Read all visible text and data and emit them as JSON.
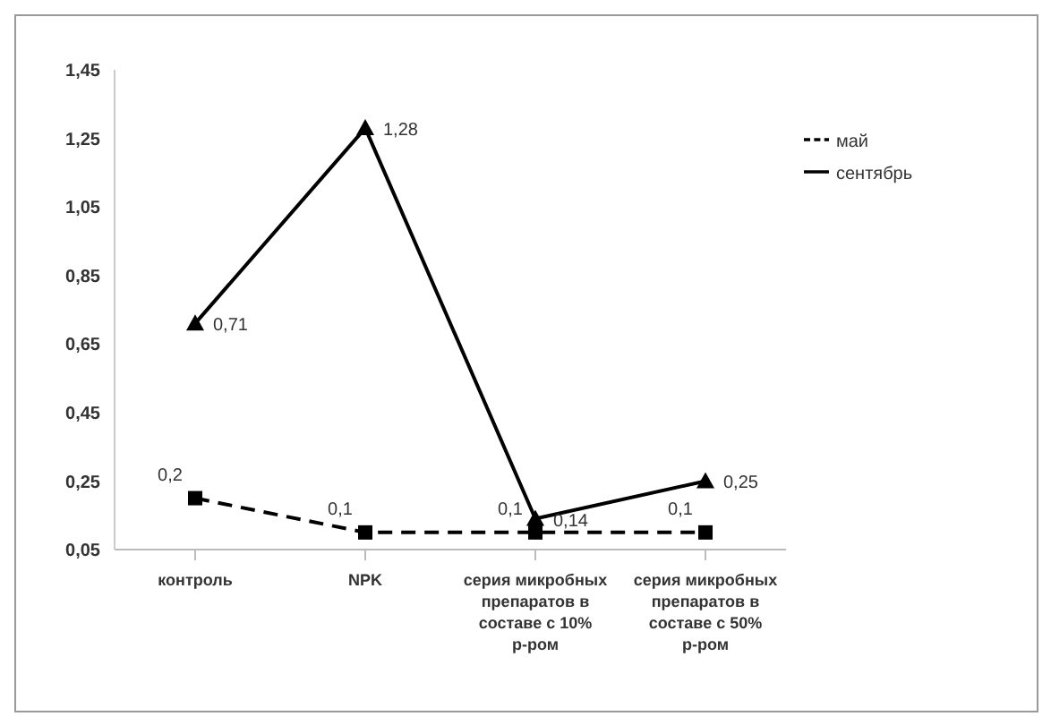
{
  "chart_data": {
    "type": "line",
    "categories": [
      "контроль",
      "NPK",
      "серия микробных препаратов в составе с 10% р-ром",
      "серия микробных препаратов в составе с 50% р-ром"
    ],
    "series": [
      {
        "name": "май",
        "color": "#000000",
        "values": [
          0.2,
          0.1,
          0.1,
          0.1
        ],
        "value_labels": [
          "0,2",
          "0,1",
          "0,1",
          "0,1"
        ],
        "marker": "square",
        "line_style": "dashed"
      },
      {
        "name": "сентябрь",
        "color": "#000000",
        "values": [
          0.71,
          1.28,
          0.14,
          0.25
        ],
        "value_labels": [
          "0,71",
          "1,28",
          "0,14",
          "0,25"
        ],
        "marker": "triangle",
        "line_style": "solid"
      }
    ],
    "ylim": [
      0.05,
      1.45
    ],
    "yticks": [
      {
        "value": 0.05,
        "label": "0,05"
      },
      {
        "value": 0.25,
        "label": "0,25"
      },
      {
        "value": 0.45,
        "label": "0,45"
      },
      {
        "value": 0.65,
        "label": "0,65"
      },
      {
        "value": 0.85,
        "label": "0,85"
      },
      {
        "value": 1.05,
        "label": "1,05"
      },
      {
        "value": 1.25,
        "label": "1,25"
      },
      {
        "value": 1.45,
        "label": "1,45"
      }
    ],
    "grid": false,
    "legend": "top right"
  }
}
